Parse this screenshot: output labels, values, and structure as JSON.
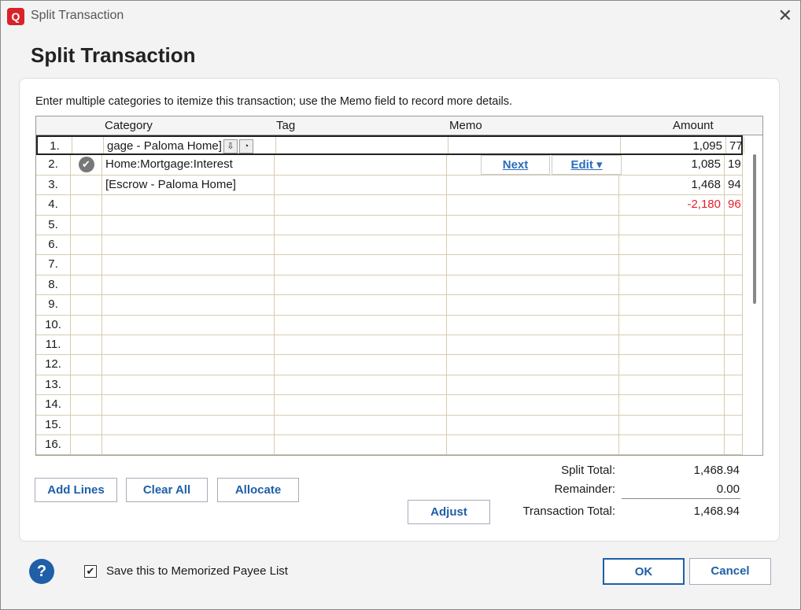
{
  "window": {
    "title": "Split Transaction",
    "logo": "Q"
  },
  "heading": "Split Transaction",
  "instructions": "Enter multiple categories to itemize this transaction; use the Memo field to record more details.",
  "columns": {
    "category": "Category",
    "tag": "Tag",
    "memo": "Memo",
    "amount": "Amount"
  },
  "rows": [
    {
      "n": "1.",
      "category": "gage - Paloma Home]",
      "tag": "",
      "memo": "",
      "dollars": "1,095",
      "cents": "77",
      "negative": false,
      "selected": true
    },
    {
      "n": "2.",
      "category": "Home:Mortgage:Interest",
      "tag": "",
      "memo": "",
      "dollars": "1,085",
      "cents": "19",
      "negative": false,
      "check": true
    },
    {
      "n": "3.",
      "category": "[Escrow - Paloma Home]",
      "tag": "",
      "memo": "",
      "dollars": "1,468",
      "cents": "94",
      "negative": false
    },
    {
      "n": "4.",
      "category": "",
      "tag": "",
      "memo": "",
      "dollars": "-2,180",
      "cents": "96",
      "negative": true
    },
    {
      "n": "5."
    },
    {
      "n": "6."
    },
    {
      "n": "7."
    },
    {
      "n": "8."
    },
    {
      "n": "9."
    },
    {
      "n": "10."
    },
    {
      "n": "11."
    },
    {
      "n": "12."
    },
    {
      "n": "13."
    },
    {
      "n": "14."
    },
    {
      "n": "15."
    },
    {
      "n": "16."
    }
  ],
  "row_actions": {
    "next": "Next",
    "edit": "Edit ▾"
  },
  "buttons": {
    "add_lines": "Add Lines",
    "clear_all": "Clear All",
    "allocate": "Allocate",
    "adjust": "Adjust",
    "ok": "OK",
    "cancel": "Cancel"
  },
  "totals": {
    "split_total_label": "Split Total:",
    "split_total": "1,468.94",
    "remainder_label": "Remainder:",
    "remainder": "0.00",
    "transaction_total_label": "Transaction Total:",
    "transaction_total": "1,468.94"
  },
  "memorize": {
    "label": "Save this to Memorized Payee List",
    "checked": true
  },
  "help": "?"
}
